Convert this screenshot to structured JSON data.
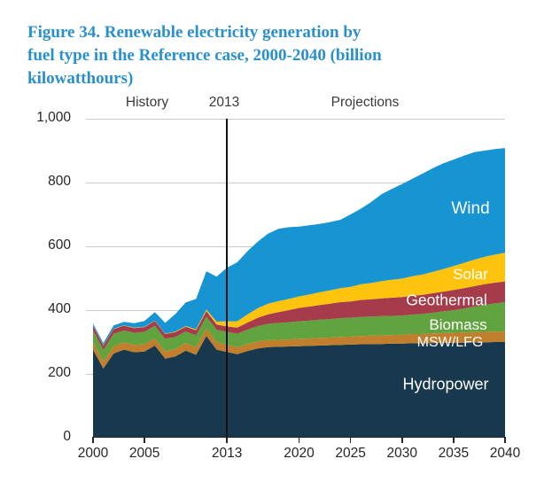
{
  "figure": {
    "title": "Figure 34. Renewable electricity generation by fuel type in the Reference case, 2000-2040 (billion kilowatthours)",
    "title_lines": [
      "Figure 34. Renewable electricity generation by",
      "fuel type in the Reference case, 2000-2040 (billion",
      "kilowatthours)"
    ],
    "title_color": "#2a90cd"
  },
  "annotations": {
    "history": "History",
    "boundary_year": "2013",
    "projections": "Projections"
  },
  "chart_data": {
    "type": "area",
    "stacked": true,
    "title": "Figure 34. Renewable electricity generation by fuel type in the Reference case, 2000-2040 (billion kilowatthours)",
    "xlabel": "",
    "ylabel": "billion kilowatthours",
    "xlim": [
      2000,
      2040
    ],
    "ylim": [
      0,
      1000
    ],
    "grid": "horizontal",
    "legend_position": "inline-area-labels",
    "divider": {
      "year": 2013,
      "label": "2013"
    },
    "yticks": [
      {
        "value": 0,
        "label": "0"
      },
      {
        "value": 200,
        "label": "200"
      },
      {
        "value": 400,
        "label": "400"
      },
      {
        "value": 600,
        "label": "600"
      },
      {
        "value": 800,
        "label": "800"
      },
      {
        "value": 1000,
        "label": "1,000"
      }
    ],
    "xticks": [
      {
        "value": 2000,
        "label": "2000"
      },
      {
        "value": 2005,
        "label": "2005"
      },
      {
        "value": 2013,
        "label": "2013"
      },
      {
        "value": 2020,
        "label": "2020"
      },
      {
        "value": 2025,
        "label": "2025"
      },
      {
        "value": 2030,
        "label": "2030"
      },
      {
        "value": 2035,
        "label": "2035"
      },
      {
        "value": 2040,
        "label": "2040"
      }
    ],
    "years": [
      2000,
      2001,
      2002,
      2003,
      2004,
      2005,
      2006,
      2007,
      2008,
      2009,
      2010,
      2011,
      2012,
      2013,
      2014,
      2015,
      2016,
      2017,
      2018,
      2019,
      2020,
      2021,
      2022,
      2023,
      2024,
      2025,
      2026,
      2027,
      2028,
      2029,
      2030,
      2031,
      2032,
      2033,
      2034,
      2035,
      2036,
      2037,
      2038,
      2039,
      2040
    ],
    "label_color": "#ffffff",
    "series": [
      {
        "name": "Hydropower",
        "color": "#17384d",
        "values": [
          276,
          217,
          264,
          276,
          268,
          270,
          289,
          248,
          255,
          273,
          260,
          319,
          276,
          269,
          262,
          272,
          280,
          284,
          285,
          286,
          287,
          288,
          289,
          290,
          291,
          292,
          293,
          294,
          294,
          295,
          295,
          296,
          296,
          297,
          297,
          298,
          298,
          299,
          299,
          300,
          300
        ]
      },
      {
        "name": "MSW/LFG",
        "color": "#c17e2c",
        "values": [
          23,
          23,
          23,
          23,
          23,
          23,
          23,
          23,
          24,
          24,
          24,
          24,
          24,
          23,
          22,
          22,
          22,
          22,
          22,
          22,
          23,
          23,
          24,
          24,
          25,
          25,
          26,
          26,
          27,
          27,
          28,
          29,
          29,
          30,
          31,
          31,
          32,
          32,
          33,
          33,
          33
        ]
      },
      {
        "name": "Biomass",
        "color": "#60a33f",
        "values": [
          38,
          35,
          39,
          37,
          38,
          39,
          39,
          39,
          37,
          36,
          37,
          37,
          38,
          40,
          42,
          45,
          48,
          51,
          53,
          54,
          55,
          56,
          57,
          58,
          59,
          59,
          60,
          60,
          60,
          60,
          60,
          61,
          63,
          65,
          68,
          71,
          75,
          80,
          84,
          88,
          92
        ]
      },
      {
        "name": "Geothermal",
        "color": "#a63c4b",
        "values": [
          14,
          14,
          15,
          15,
          15,
          15,
          15,
          15,
          15,
          15,
          16,
          17,
          17,
          17,
          19,
          22,
          26,
          30,
          34,
          38,
          42,
          44,
          46,
          48,
          50,
          51,
          53,
          54,
          56,
          57,
          58,
          59,
          60,
          61,
          62,
          63,
          64,
          64,
          65,
          65,
          65
        ]
      },
      {
        "name": "Solar",
        "color": "#fdc30d",
        "values": [
          1,
          1,
          1,
          1,
          1,
          1,
          1,
          1,
          2,
          2,
          3,
          5,
          9,
          16,
          20,
          26,
          30,
          33,
          34,
          35,
          36,
          38,
          40,
          42,
          44,
          46,
          49,
          51,
          54,
          56,
          58,
          61,
          64,
          67,
          71,
          75,
          79,
          83,
          86,
          88,
          90
        ]
      },
      {
        "name": "Wind",
        "color": "#1795d3",
        "values": [
          6,
          7,
          10,
          11,
          14,
          18,
          27,
          34,
          55,
          74,
          95,
          120,
          141,
          168,
          185,
          198,
          209,
          220,
          227,
          225,
          219,
          217,
          214,
          214,
          214,
          227,
          237,
          254,
          272,
          285,
          296,
          306,
          316,
          325,
          331,
          334,
          336,
          337,
          333,
          331,
          328
        ]
      }
    ]
  }
}
